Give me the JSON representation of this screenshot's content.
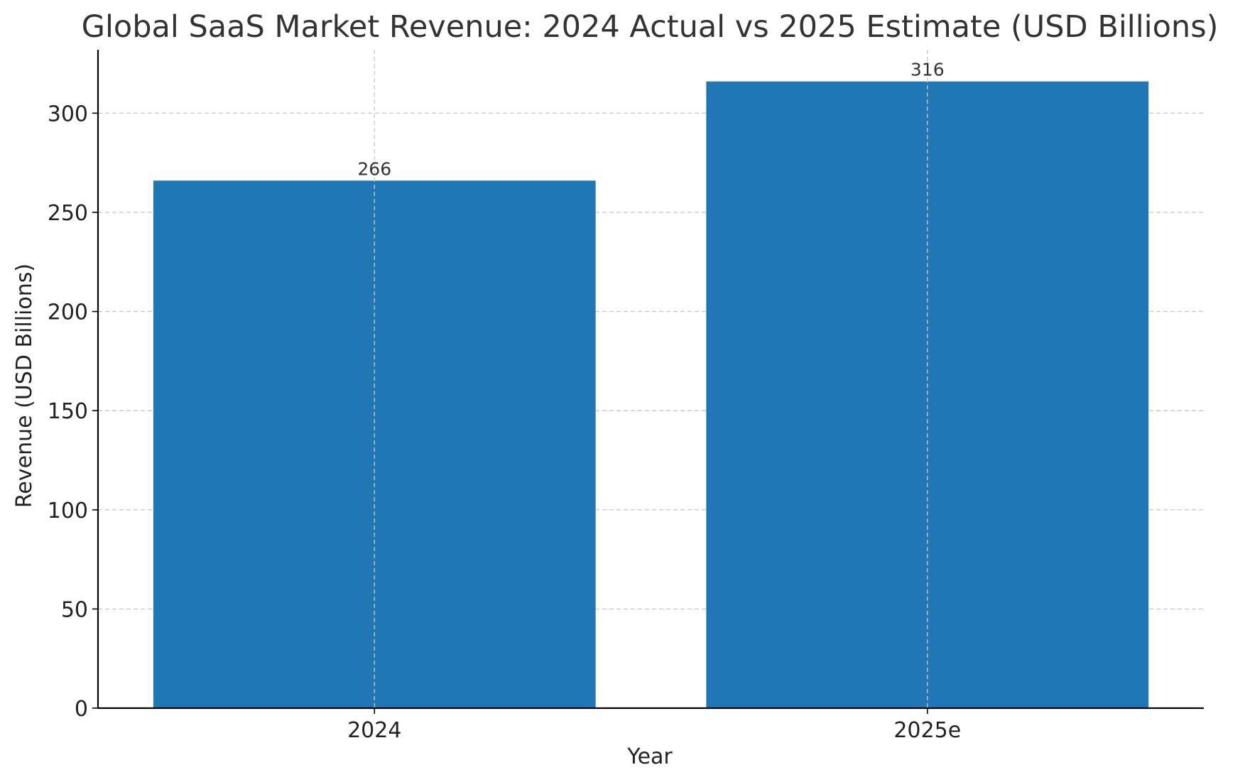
{
  "chart_data": {
    "type": "bar",
    "title": "Global SaaS Market Revenue: 2024 Actual vs 2025 Estimate (USD Billions)",
    "xlabel": "Year",
    "ylabel": "Revenue (USD Billions)",
    "categories": [
      "2024",
      "2025e"
    ],
    "values": [
      266,
      316
    ],
    "data_labels": [
      "266",
      "316"
    ],
    "ylim": [
      0,
      332
    ],
    "yticks": [
      0,
      50,
      100,
      150,
      200,
      250,
      300
    ],
    "grid": true,
    "bar_color": "#2077b4"
  }
}
